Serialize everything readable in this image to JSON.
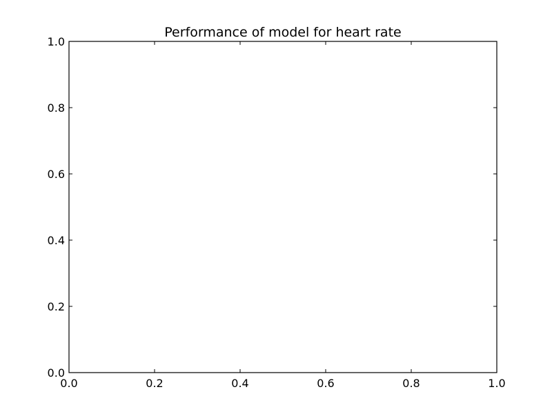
{
  "chart_data": {
    "type": "line",
    "title": "Performance of model for heart rate",
    "xlabel": "",
    "ylabel": "",
    "xlim": [
      0.0,
      1.0
    ],
    "ylim": [
      0.0,
      1.0
    ],
    "x_ticks": [
      0.0,
      0.2,
      0.4,
      0.6,
      0.8,
      1.0
    ],
    "y_ticks": [
      0.0,
      0.2,
      0.4,
      0.6,
      0.8,
      1.0
    ],
    "x_tick_labels": [
      "0.0",
      "0.2",
      "0.4",
      "0.6",
      "0.8",
      "1.0"
    ],
    "y_tick_labels": [
      "0.0",
      "0.2",
      "0.4",
      "0.6",
      "0.8",
      "1.0"
    ],
    "grid": false,
    "series": []
  }
}
